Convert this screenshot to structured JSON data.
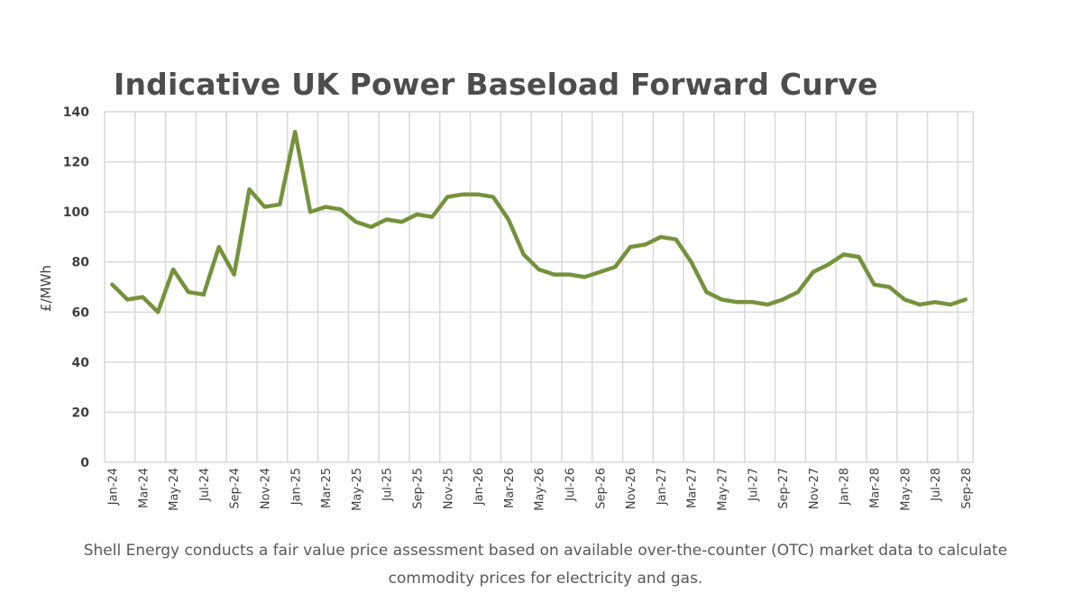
{
  "chart_data": {
    "type": "line",
    "title": "Indicative UK Power Baseload Forward Curve",
    "xlabel": "",
    "ylabel": "£/MWh",
    "ylim": [
      0,
      140
    ],
    "yticks": [
      0,
      20,
      40,
      60,
      80,
      100,
      120,
      140
    ],
    "grid": true,
    "legend": "none",
    "categories": [
      "Jan-24",
      "Feb-24",
      "Mar-24",
      "Apr-24",
      "May-24",
      "Jun-24",
      "Jul-24",
      "Aug-24",
      "Sep-24",
      "Oct-24",
      "Nov-24",
      "Dec-24",
      "Jan-25",
      "Feb-25",
      "Mar-25",
      "Apr-25",
      "May-25",
      "Jun-25",
      "Jul-25",
      "Aug-25",
      "Sep-25",
      "Oct-25",
      "Nov-25",
      "Dec-25",
      "Jan-26",
      "Feb-26",
      "Mar-26",
      "Apr-26",
      "May-26",
      "Jun-26",
      "Jul-26",
      "Aug-26",
      "Sep-26",
      "Oct-26",
      "Nov-26",
      "Dec-26",
      "Jan-27",
      "Feb-27",
      "Mar-27",
      "Apr-27",
      "May-27",
      "Jun-27",
      "Jul-27",
      "Aug-27",
      "Sep-27",
      "Oct-27",
      "Nov-27",
      "Dec-27",
      "Jan-28",
      "Feb-28",
      "Mar-28",
      "Apr-28",
      "May-28",
      "Jun-28",
      "Jul-28",
      "Aug-28",
      "Sep-28"
    ],
    "tick_labels": [
      "Jan-24",
      "Mar-24",
      "May-24",
      "Jul-24",
      "Sep-24",
      "Nov-24",
      "Jan-25",
      "Mar-25",
      "May-25",
      "Jul-25",
      "Sep-25",
      "Nov-25",
      "Jan-26",
      "Mar-26",
      "May-26",
      "Jul-26",
      "Sep-26",
      "Nov-26",
      "Jan-27",
      "Mar-27",
      "May-27",
      "Jul-27",
      "Sep-27",
      "Nov-27",
      "Jan-28",
      "Mar-28",
      "May-28",
      "Jul-28",
      "Sep-28"
    ],
    "series": [
      {
        "name": "UK Power Baseload",
        "color": "#76923c",
        "values": [
          71,
          65,
          66,
          60,
          77,
          68,
          67,
          86,
          75,
          109,
          102,
          103,
          132,
          100,
          102,
          101,
          96,
          94,
          97,
          96,
          99,
          98,
          106,
          107,
          107,
          106,
          97,
          83,
          77,
          75,
          75,
          74,
          76,
          78,
          86,
          87,
          90,
          89,
          80,
          68,
          65,
          64,
          64,
          63,
          65,
          68,
          76,
          79,
          83,
          82,
          71,
          70,
          65,
          63,
          64,
          63,
          65
        ]
      }
    ]
  },
  "footnote": {
    "line1": "Shell Energy conducts a fair value price assessment based on available over-the-counter (OTC) market data to calculate",
    "line2": "commodity prices for electricity and gas."
  }
}
